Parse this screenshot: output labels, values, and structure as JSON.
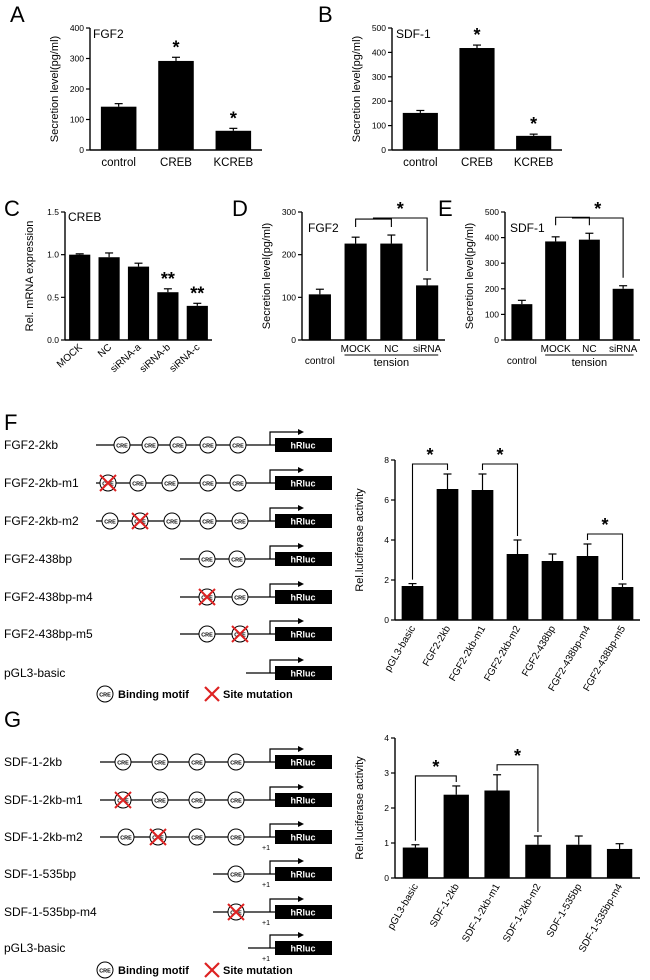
{
  "panels": [
    {
      "letter": "A",
      "title": "FGF2",
      "ylabel": "Secretion level(pg/ml)",
      "chart_data": {
        "type": "bar",
        "ylim": [
          0,
          400
        ],
        "ticks": [
          0,
          100,
          200,
          300,
          400
        ],
        "categories": [
          "control",
          "CREB",
          "KCREB"
        ],
        "values": [
          142,
          292,
          63
        ],
        "errors": [
          10,
          12,
          8
        ],
        "annotations": [
          "",
          "*",
          "*"
        ]
      }
    },
    {
      "letter": "B",
      "title": "SDF-1",
      "ylabel": "Secretion level(pg/ml)",
      "chart_data": {
        "type": "bar",
        "ylim": [
          0,
          500
        ],
        "ticks": [
          0,
          100,
          200,
          300,
          400,
          500
        ],
        "categories": [
          "control",
          "CREB",
          "KCREB"
        ],
        "values": [
          152,
          418,
          58
        ],
        "errors": [
          10,
          12,
          7
        ],
        "annotations": [
          "",
          "*",
          "*"
        ]
      }
    },
    {
      "letter": "C",
      "title": "CREB",
      "ylabel": "Rel. mRNA expression",
      "chart_data": {
        "type": "bar",
        "ylim": [
          0,
          1.5
        ],
        "ticks": [
          0,
          0.5,
          1,
          1.5
        ],
        "tick_labels": [
          "0.0",
          "0.5",
          "1.0",
          "1.5"
        ],
        "categories": [
          "MOCK",
          "NC",
          "siRNA-a",
          "siRNA-b",
          "siRNA-c"
        ],
        "values": [
          1.0,
          0.97,
          0.86,
          0.56,
          0.4
        ],
        "errors": [
          0.01,
          0.05,
          0.04,
          0.04,
          0.03
        ],
        "annotations": [
          "",
          "",
          "",
          "**",
          "**"
        ]
      }
    },
    {
      "letter": "D",
      "title": "FGF2",
      "ylabel": "Secretion level(pg/ml)",
      "group_label": "tension",
      "significance": "*",
      "chart_data": {
        "type": "bar",
        "ylim": [
          0,
          300
        ],
        "ticks": [
          0,
          100,
          200,
          300
        ],
        "categories": [
          "control",
          "MOCK",
          "NC",
          "siRNA"
        ],
        "values": [
          107,
          226,
          226,
          128
        ],
        "errors": [
          12,
          15,
          20,
          15
        ]
      }
    },
    {
      "letter": "E",
      "title": "SDF-1",
      "ylabel": "Secretion level(pg/ml)",
      "group_label": "tension",
      "significance": "*",
      "chart_data": {
        "type": "bar",
        "ylim": [
          0,
          500
        ],
        "ticks": [
          0,
          100,
          200,
          300,
          400,
          500
        ],
        "categories": [
          "control",
          "MOCK",
          "NC",
          "siRNA"
        ],
        "values": [
          140,
          385,
          392,
          200
        ],
        "errors": [
          15,
          18,
          25,
          12
        ]
      }
    },
    {
      "letter": "F",
      "ylabel": "Rel.luciferase activity",
      "constructs": [
        "FGF2-2kb",
        "FGF2-2kb-m1",
        "FGF2-2kb-m2",
        "FGF2-438bp",
        "FGF2-438bp-m4",
        "FGF2-438bp-m5",
        "pGL3-basic"
      ],
      "chart_data": {
        "type": "bar",
        "ylim": [
          0,
          8
        ],
        "ticks": [
          0,
          2,
          4,
          6,
          8
        ],
        "categories": [
          "pGL3-basic",
          "FGF2-2kb",
          "FGF2-2kb-m1",
          "FGF2-2kb-m2",
          "FGF2-438bp",
          "FGF2-438bp-m4",
          "FGF2-438bp-m5"
        ],
        "values": [
          1.7,
          6.55,
          6.5,
          3.3,
          2.95,
          3.2,
          1.65
        ],
        "errors": [
          0.12,
          0.75,
          0.8,
          0.7,
          0.35,
          0.6,
          0.15
        ],
        "brackets": [
          {
            "from": 0,
            "to": 1,
            "label": "*"
          },
          {
            "from": 2,
            "to": 3,
            "label": "*"
          },
          {
            "from": 5,
            "to": 6,
            "label": "*"
          }
        ]
      }
    },
    {
      "letter": "G",
      "ylabel": "Rel.luciferase activity",
      "constructs": [
        "SDF-1-2kb",
        "SDF-1-2kb-m1",
        "SDF-1-2kb-m2",
        "SDF-1-535bp",
        "SDF-1-535bp-m4",
        "pGL3-basic"
      ],
      "chart_data": {
        "type": "bar",
        "ylim": [
          0,
          4
        ],
        "ticks": [
          0,
          1,
          2,
          3,
          4
        ],
        "categories": [
          "pGL3-basic",
          "SDF-1-2kb",
          "SDF-1-2kb-m1",
          "SDF-1-2kb-m2",
          "SDF-1-535bp",
          "SDF-1-535bp-m4"
        ],
        "values": [
          0.87,
          2.38,
          2.5,
          0.95,
          0.95,
          0.83
        ],
        "errors": [
          0.08,
          0.25,
          0.45,
          0.25,
          0.25,
          0.15
        ],
        "brackets": [
          {
            "from": 0,
            "to": 1,
            "label": "*"
          },
          {
            "from": 2,
            "to": 3,
            "label": "*"
          }
        ]
      }
    }
  ],
  "diagram": {
    "cre_label": "CRE",
    "reporter_label": "hRluc",
    "tss_label": "+1",
    "legend_binding": "Binding motif",
    "legend_mutation": "Site mutation"
  }
}
